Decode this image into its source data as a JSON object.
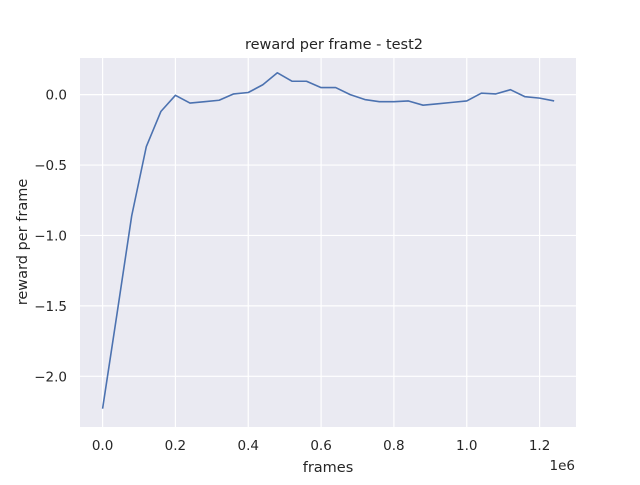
{
  "chart_data": {
    "type": "line",
    "title": "reward per frame - test2",
    "xlabel": "frames",
    "ylabel": "reward per frame",
    "x_offset_label": "1e6",
    "xlim": [
      -0.062,
      1.3
    ],
    "ylim": [
      -2.36,
      0.26
    ],
    "xticks": [
      0.0,
      0.2,
      0.4,
      0.6,
      0.8,
      1.0,
      1.2
    ],
    "xtick_labels": [
      "0.0",
      "0.2",
      "0.4",
      "0.6",
      "0.8",
      "1.0",
      "1.2"
    ],
    "yticks": [
      0.0,
      -0.5,
      -1.0,
      -1.5,
      -2.0
    ],
    "ytick_labels": [
      "0.0",
      "−0.5",
      "−1.0",
      "−1.5",
      "−2.0"
    ],
    "grid": true,
    "background_color": "#eaeaf2",
    "grid_color": "#ffffff",
    "series": [
      {
        "color": "#4c72b0",
        "x": [
          0.0,
          0.04,
          0.08,
          0.12,
          0.16,
          0.2,
          0.24,
          0.28,
          0.32,
          0.36,
          0.4,
          0.44,
          0.48,
          0.52,
          0.56,
          0.6,
          0.64,
          0.68,
          0.72,
          0.76,
          0.8,
          0.84,
          0.88,
          0.92,
          0.96,
          1.0,
          1.04,
          1.08,
          1.12,
          1.16,
          1.2,
          1.24
        ],
        "y": [
          -2.23,
          -1.55,
          -0.86,
          -0.37,
          -0.12,
          -0.005,
          -0.06,
          -0.05,
          -0.04,
          0.005,
          0.015,
          0.07,
          0.155,
          0.095,
          0.095,
          0.05,
          0.05,
          0.0,
          -0.035,
          -0.05,
          -0.05,
          -0.045,
          -0.075,
          -0.065,
          -0.055,
          -0.045,
          0.01,
          0.005,
          0.035,
          -0.015,
          -0.025,
          -0.045
        ]
      }
    ]
  }
}
